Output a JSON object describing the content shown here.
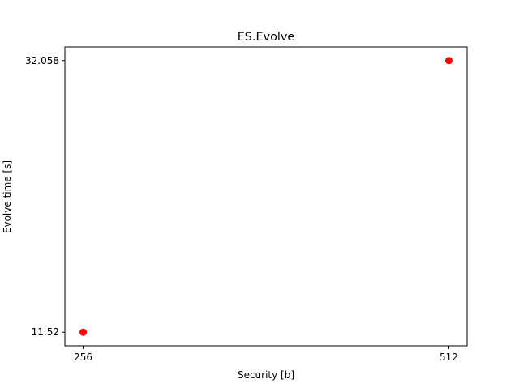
{
  "chart_data": {
    "type": "scatter",
    "title": "ES.Evolve",
    "xlabel": "Security [b]",
    "ylabel": "Evolve time [s]",
    "x_ticks": [
      256,
      512
    ],
    "x_tick_labels": [
      "256",
      "512"
    ],
    "y_ticks": [
      11.52,
      32.058
    ],
    "y_tick_labels": [
      "11.52",
      "32.058"
    ],
    "xlim": [
      243.2,
      524.8
    ],
    "ylim": [
      10.493,
      33.085
    ],
    "grid": false,
    "legend": "none",
    "series": [
      {
        "color": "#ff0000",
        "points": [
          {
            "x": 256,
            "y": 11.52
          },
          {
            "x": 512,
            "y": 32.058
          }
        ]
      }
    ]
  }
}
